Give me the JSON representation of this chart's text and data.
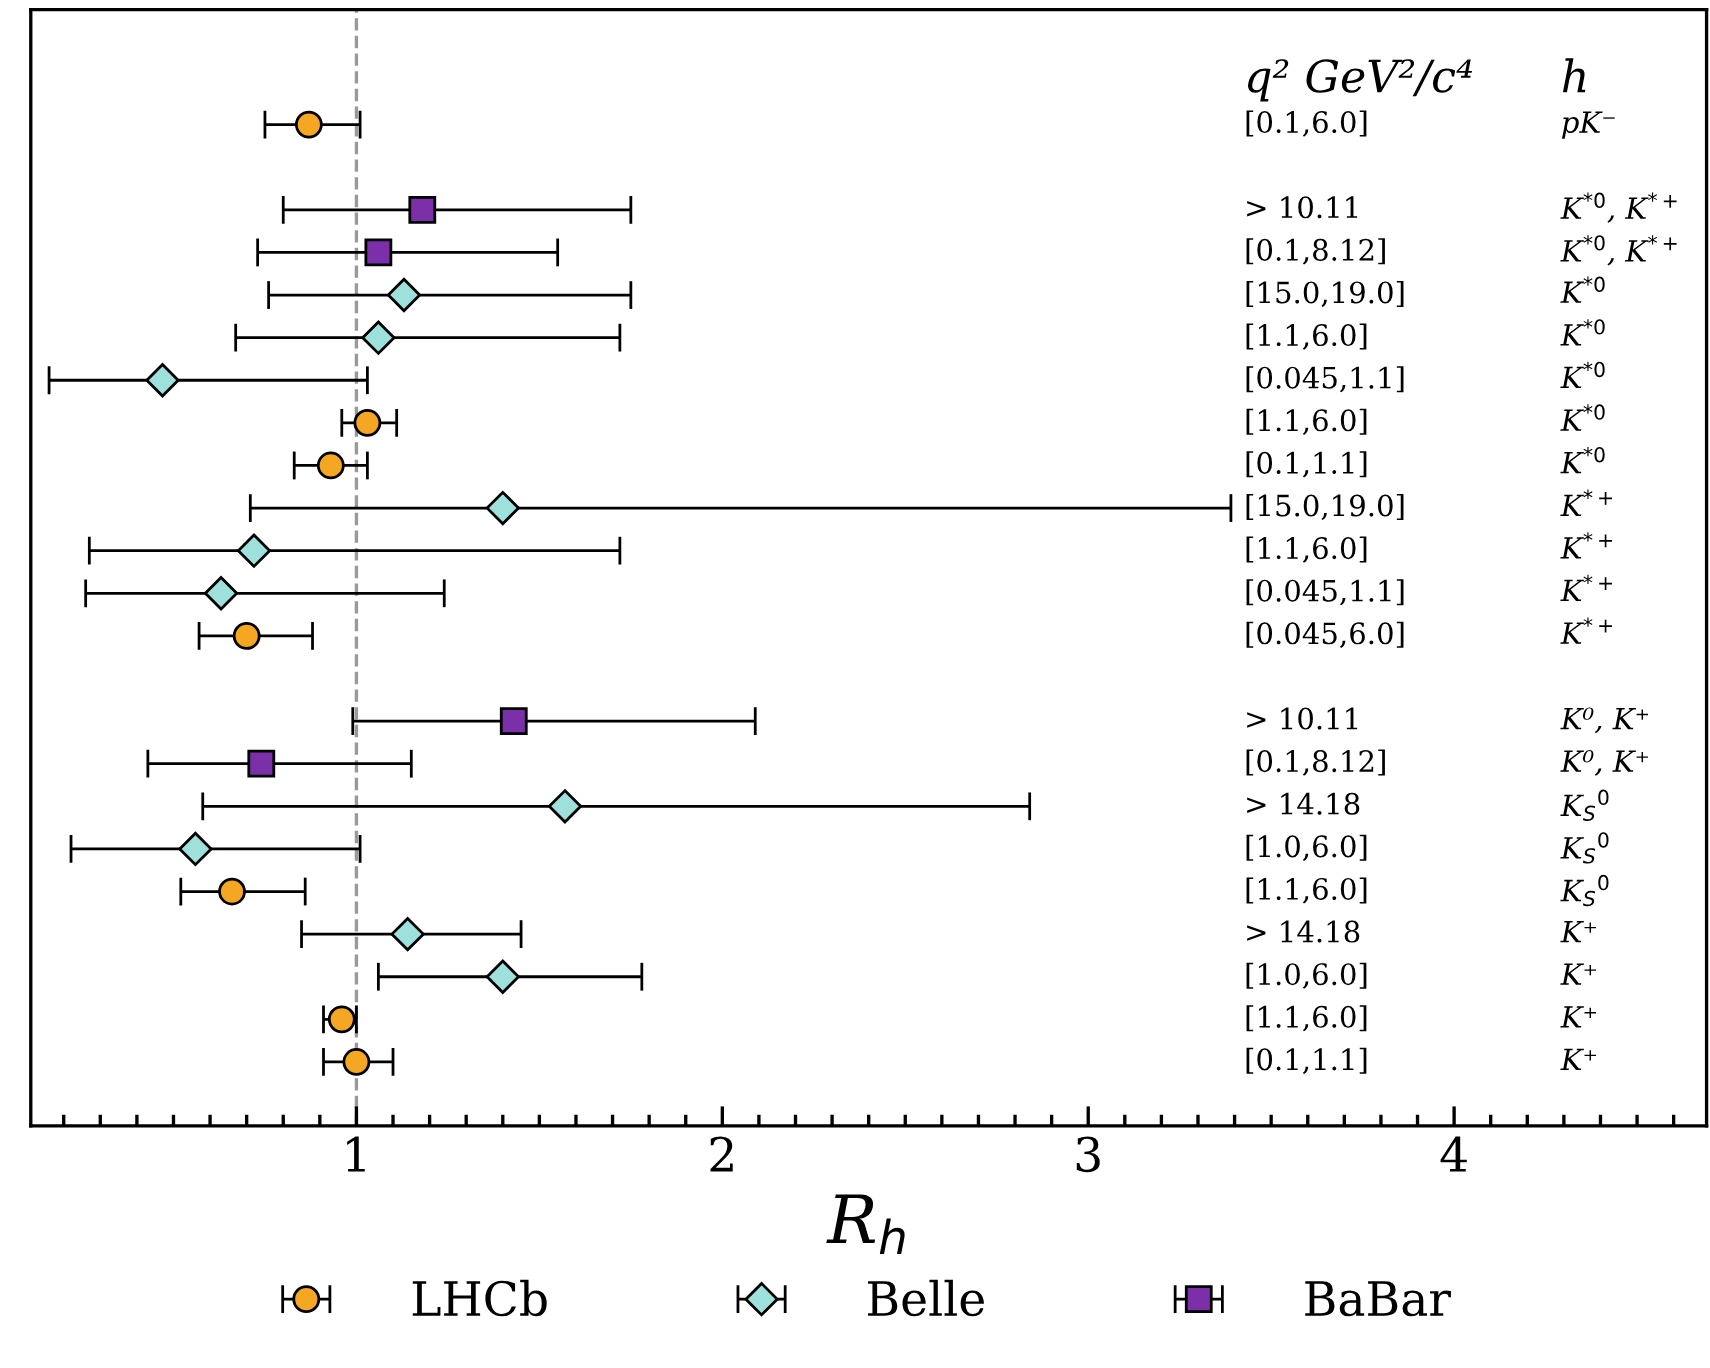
{
  "chart_data": {
    "type": "scatter",
    "orientation": "horizontal",
    "xlabel": "R$_{h}$",
    "categories": [
      "[0.1,6.0]",
      null,
      "> 10.11",
      "[0.1,8.12]",
      "[15.0,19.0]",
      "[1.1,6.0]",
      "[0.045,1.1]",
      "[1.1,6.0]",
      "[0.1,1.1]",
      "[15.0,19.0]",
      "[1.1,6.0]",
      "[0.045,1.1]",
      "[0.045,6.0]",
      null,
      "> 10.11",
      "[0.1,8.12]",
      "> 14.18",
      "[1.0,6.0]",
      "[1.1,6.0]",
      "> 14.18",
      "[1.0,6.0]",
      "[1.1,6.0]",
      "[0.1,1.1]"
    ],
    "y2_categories": [
      "pK⁻",
      null,
      "K$^{*0}$, K$^{*+}$",
      "K$^{*0}$, K$^{*+}$",
      "K$^{*0}$",
      "K$^{*0}$",
      "K$^{*0}$",
      "K$^{*0}$",
      "K$^{*0}$",
      "K$^{*+}$",
      "K$^{*+}$",
      "K$^{*+}$",
      "K$^{*+}$",
      null,
      "K⁰, K⁺",
      "K⁰, K⁺",
      "K$_{S}$$^{0}$",
      "K$_{S}$$^{0}$",
      "K$_{S}$$^{0}$",
      "K⁺",
      "K⁺",
      "K⁺",
      "K⁺"
    ],
    "annotations": [
      "q² GeV²/c⁴",
      "h"
    ],
    "series": [
      {
        "name": "LHCb",
        "color": "#f5a623",
        "marker": "circle",
        "values": [
          0.87,
          null,
          null,
          null,
          null,
          null,
          null,
          1.03,
          0.93,
          null,
          null,
          null,
          0.7,
          null,
          null,
          null,
          null,
          null,
          0.66,
          null,
          null,
          0.96,
          1.0
        ],
        "errors": [
          [
            0.75,
            1.01
          ],
          null,
          null,
          null,
          null,
          null,
          null,
          [
            0.96,
            1.11
          ],
          [
            0.83,
            1.03
          ],
          null,
          null,
          null,
          [
            0.57,
            0.88
          ],
          null,
          null,
          null,
          null,
          null,
          [
            0.52,
            0.86
          ],
          null,
          null,
          [
            0.91,
            1.0
          ],
          [
            0.91,
            1.1
          ]
        ]
      },
      {
        "name": "Belle",
        "color": "#9ee0dc",
        "marker": "diamond",
        "values": [
          null,
          null,
          null,
          null,
          1.13,
          1.06,
          0.47,
          null,
          null,
          1.4,
          0.72,
          0.63,
          null,
          null,
          null,
          null,
          1.57,
          0.56,
          null,
          1.14,
          1.4,
          null,
          null
        ],
        "errors": [
          null,
          null,
          null,
          null,
          [
            0.76,
            1.75
          ],
          [
            0.67,
            1.72
          ],
          [
            0.16,
            1.03
          ],
          null,
          null,
          [
            0.71,
            3.39
          ],
          [
            0.27,
            1.72
          ],
          [
            0.26,
            1.24
          ],
          null,
          null,
          null,
          null,
          [
            0.58,
            2.84
          ],
          [
            0.22,
            1.01
          ],
          null,
          [
            0.85,
            1.45
          ],
          [
            1.06,
            1.78
          ],
          null,
          null
        ]
      },
      {
        "name": "BaBar",
        "color": "#7b2fa8",
        "marker": "square",
        "values": [
          null,
          null,
          1.18,
          1.06,
          null,
          null,
          null,
          null,
          null,
          null,
          null,
          null,
          null,
          null,
          1.43,
          0.74,
          null,
          null,
          null,
          null,
          null,
          null,
          null
        ],
        "errors": [
          null,
          null,
          [
            0.8,
            1.75
          ],
          [
            0.73,
            1.55
          ],
          null,
          null,
          null,
          null,
          null,
          null,
          null,
          null,
          null,
          null,
          [
            0.99,
            2.09
          ],
          [
            0.43,
            1.15
          ],
          null,
          null,
          null,
          null,
          null,
          null,
          null
        ]
      }
    ],
    "xlim": [
      0.11,
      4.69
    ],
    "xticks": [
      {
        "value": 0.2,
        "label": null
      },
      {
        "value": 0.3,
        "label": null
      },
      {
        "value": 0.4,
        "label": null
      },
      {
        "value": 0.5,
        "label": null
      },
      {
        "value": 0.6,
        "label": null
      },
      {
        "value": 0.7,
        "label": null
      },
      {
        "value": 0.8,
        "label": null
      },
      {
        "value": 0.9,
        "label": null
      },
      1,
      {
        "value": 1.1,
        "label": null
      },
      {
        "value": 1.2,
        "label": null
      },
      {
        "value": 1.3,
        "label": null
      },
      {
        "value": 1.4,
        "label": null
      },
      {
        "value": 1.5,
        "label": null
      },
      {
        "value": 1.6,
        "label": null
      },
      {
        "value": 1.7,
        "label": null
      },
      {
        "value": 1.8,
        "label": null
      },
      {
        "value": 1.9,
        "label": null
      },
      2,
      {
        "value": 2.1,
        "label": null
      },
      {
        "value": 2.2,
        "label": null
      },
      {
        "value": 2.3,
        "label": null
      },
      {
        "value": 2.4,
        "label": null
      },
      {
        "value": 2.5,
        "label": null
      },
      {
        "value": 2.6,
        "label": null
      },
      {
        "value": 2.7,
        "label": null
      },
      {
        "value": 2.8,
        "label": null
      },
      {
        "value": 2.9,
        "label": null
      },
      3,
      {
        "value": 3.1,
        "label": null
      },
      {
        "value": 3.2,
        "label": null
      },
      {
        "value": 3.3,
        "label": null
      },
      {
        "value": 3.4,
        "label": null
      },
      {
        "value": 3.5,
        "label": null
      },
      {
        "value": 3.6,
        "label": null
      },
      {
        "value": 3.7,
        "label": null
      },
      {
        "value": 3.8,
        "label": null
      },
      {
        "value": 3.9,
        "label": null
      },
      4,
      {
        "value": 4.1,
        "label": null
      },
      {
        "value": 4.2,
        "label": null
      },
      {
        "value": 4.3,
        "label": null
      },
      {
        "value": 4.4,
        "label": null
      },
      {
        "value": 4.5,
        "label": null
      },
      {
        "value": 4.6,
        "label": null
      }
    ],
    "ref_lines": [
      {
        "axis": "x",
        "value": 1,
        "color": "#999999",
        "line_style": "dashed"
      }
    ],
    "grid": false,
    "legend": "bottom"
  }
}
